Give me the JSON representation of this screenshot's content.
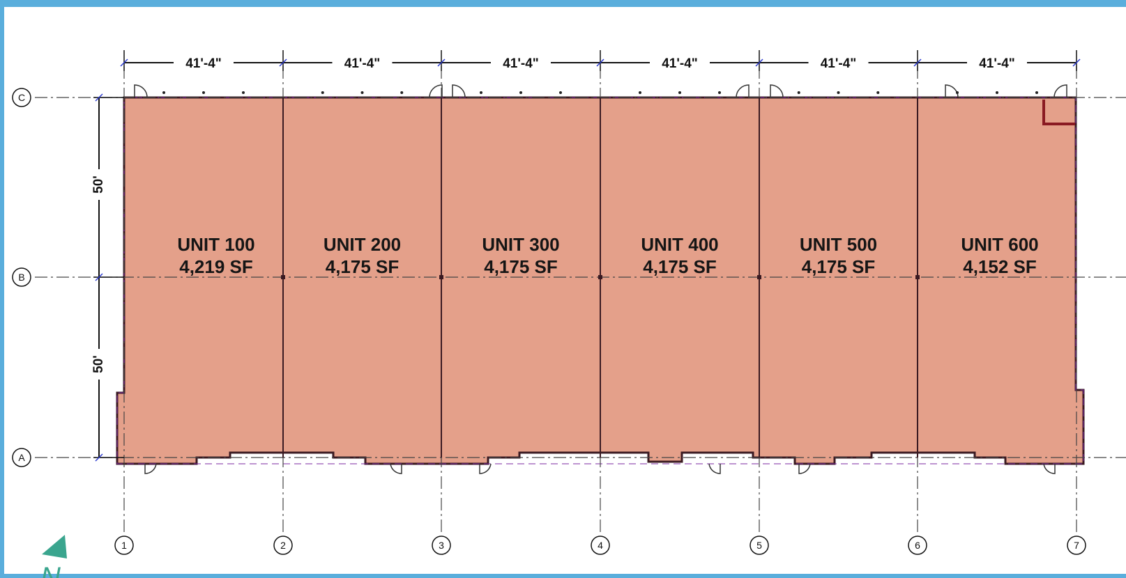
{
  "colors": {
    "frame": "#5aaedc",
    "unit_fill": "#e4a08a",
    "wall": "#3a1a22",
    "wall_accent": "#7b2aa0",
    "north_arrow": "#3aa58e"
  },
  "units": [
    {
      "name": "UNIT 100",
      "area": "4,219 SF"
    },
    {
      "name": "UNIT 200",
      "area": "4,175 SF"
    },
    {
      "name": "UNIT 300",
      "area": "4,175 SF"
    },
    {
      "name": "UNIT 400",
      "area": "4,175 SF"
    },
    {
      "name": "UNIT 500",
      "area": "4,175 SF"
    },
    {
      "name": "UNIT 600",
      "area": "4,152 SF"
    }
  ],
  "column_dimensions": [
    "41'-4\"",
    "41'-4\"",
    "41'-4\"",
    "41'-4\"",
    "41'-4\"",
    "41'-4\""
  ],
  "row_dimensions": [
    "50'",
    "50'"
  ],
  "grid_columns": [
    "1",
    "2",
    "3",
    "4",
    "5",
    "6",
    "7"
  ],
  "grid_rows": [
    "C",
    "B",
    "A"
  ],
  "north_label": "N",
  "north_icon": "north-arrow-icon"
}
